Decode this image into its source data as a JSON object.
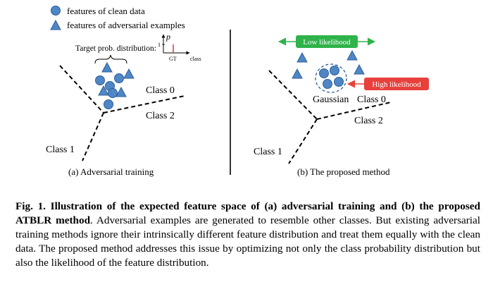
{
  "legend": {
    "clean": "features of clean data",
    "adversarial": "features of adversarial examples"
  },
  "panel_a": {
    "target_label": "Target prob. distribution:",
    "axis_p": "p",
    "tick_one": "1",
    "axis_gt": "GT",
    "axis_class": "class",
    "class0": "Class 0",
    "class1": "Class 1",
    "class2": "Class 2",
    "caption": "(a) Adversarial training"
  },
  "panel_b": {
    "low_likelihood": "Low likelihood",
    "high_likelihood": "High likelihood",
    "gaussian": "Gaussian",
    "class0": "Class 0",
    "class1": "Class 1",
    "class2": "Class 2",
    "caption": "(b) The proposed method"
  },
  "caption": {
    "lead": "Fig. 1. Illustration of the expected feature space of (a) adversarial training and (b) the proposed ATBLR method",
    "body": ". Adversarial examples are generated to resemble other classes. But existing adversarial training methods ignore their intrinsically different feature distribution and treat them equally with the clean data. The proposed method addresses this issue by optimizing not only the class probability distribution but also the likelihood of the feature distribution."
  },
  "colors": {
    "marker_fill": "#4f86c6",
    "marker_stroke": "#2e5f98",
    "low_box": "#2fb34a",
    "high_box": "#e8413c"
  },
  "icons": [
    "circle-marker",
    "triangle-marker",
    "dashed-boundary",
    "dashed-gaussian-ellipse",
    "arrow"
  ]
}
